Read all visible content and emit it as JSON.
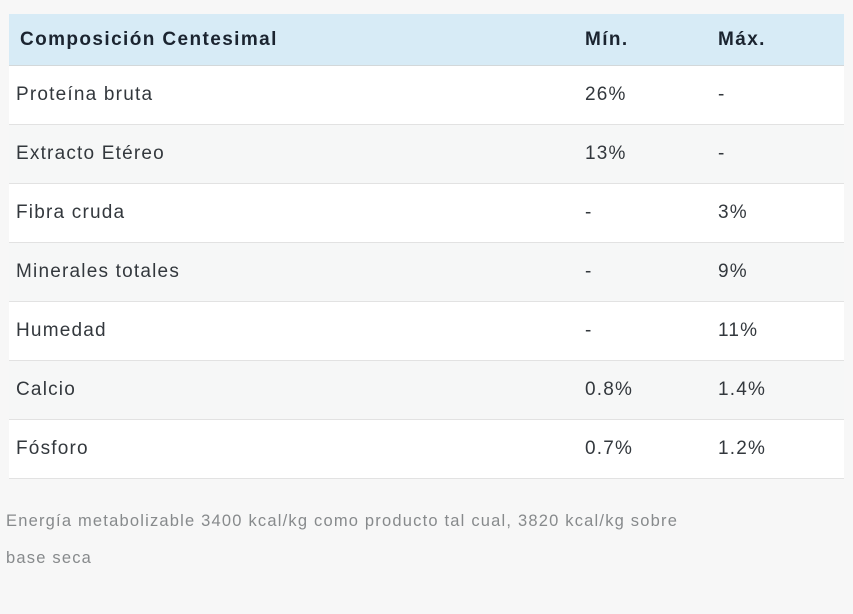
{
  "table": {
    "header": {
      "title": "Composición Centesimal",
      "min": "Mín.",
      "max": "Máx."
    },
    "rows": [
      {
        "name": "Proteína bruta",
        "min": "26%",
        "max": "-"
      },
      {
        "name": "Extracto Etéreo",
        "min": "13%",
        "max": "-"
      },
      {
        "name": "Fibra cruda",
        "min": "-",
        "max": "3%"
      },
      {
        "name": "Minerales totales",
        "min": "-",
        "max": "9%"
      },
      {
        "name": "Humedad",
        "min": "-",
        "max": "11%"
      },
      {
        "name": "Calcio",
        "min": "0.8%",
        "max": "1.4%"
      },
      {
        "name": "Fósforo",
        "min": "0.7%",
        "max": "1.2%"
      }
    ]
  },
  "footer": {
    "lines": [
      "Energía metabolizable 3400 kcal/kg como producto tal cual, 3820 kcal/kg sobre",
      "base seca"
    ]
  },
  "colors": {
    "header_bg": "#d7ebf6",
    "header_text": "#1b2430",
    "body_text": "#33383d",
    "row_alt_bg": "#f6f7f7",
    "page_bg": "#f7f7f7",
    "note_text": "#878a8c",
    "divider": "#e2e2e2"
  }
}
